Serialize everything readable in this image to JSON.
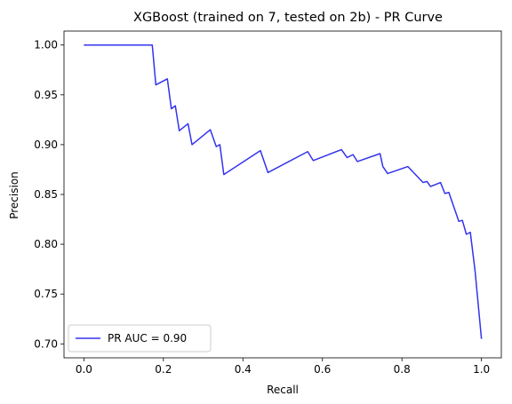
{
  "chart_data": {
    "type": "line",
    "title": "XGBoost (trained on 7, tested on 2b) -  PR Curve",
    "xlabel": "Recall",
    "ylabel": "Precision",
    "xlim": [
      -0.05,
      1.05
    ],
    "ylim": [
      0.686,
      1.014
    ],
    "xticks": [
      0.0,
      0.2,
      0.4,
      0.6,
      0.8,
      1.0
    ],
    "xtick_labels": [
      "0.0",
      "0.2",
      "0.4",
      "0.6",
      "0.8",
      "1.0"
    ],
    "yticks": [
      0.7,
      0.75,
      0.8,
      0.85,
      0.9,
      0.95,
      1.0
    ],
    "ytick_labels": [
      "0.70",
      "0.75",
      "0.80",
      "0.85",
      "0.90",
      "0.95",
      "1.00"
    ],
    "grid": false,
    "legend_position": "lower-left",
    "series": [
      {
        "name": "PR AUC = 0.90",
        "color": "#3333ee",
        "x": [
          0.0,
          0.172,
          0.181,
          0.21,
          0.22,
          0.23,
          0.24,
          0.262,
          0.272,
          0.318,
          0.333,
          0.342,
          0.352,
          0.444,
          0.463,
          0.563,
          0.577,
          0.648,
          0.662,
          0.677,
          0.688,
          0.745,
          0.752,
          0.764,
          0.815,
          0.853,
          0.863,
          0.872,
          0.897,
          0.908,
          0.918,
          0.943,
          0.952,
          0.962,
          0.972,
          0.984,
          1.0
        ],
        "y": [
          1.0,
          1.0,
          0.96,
          0.966,
          0.936,
          0.939,
          0.914,
          0.921,
          0.9,
          0.915,
          0.898,
          0.9,
          0.87,
          0.894,
          0.872,
          0.893,
          0.884,
          0.895,
          0.887,
          0.89,
          0.883,
          0.891,
          0.878,
          0.871,
          0.878,
          0.862,
          0.863,
          0.858,
          0.862,
          0.851,
          0.852,
          0.823,
          0.824,
          0.81,
          0.812,
          0.773,
          0.705
        ]
      }
    ]
  }
}
